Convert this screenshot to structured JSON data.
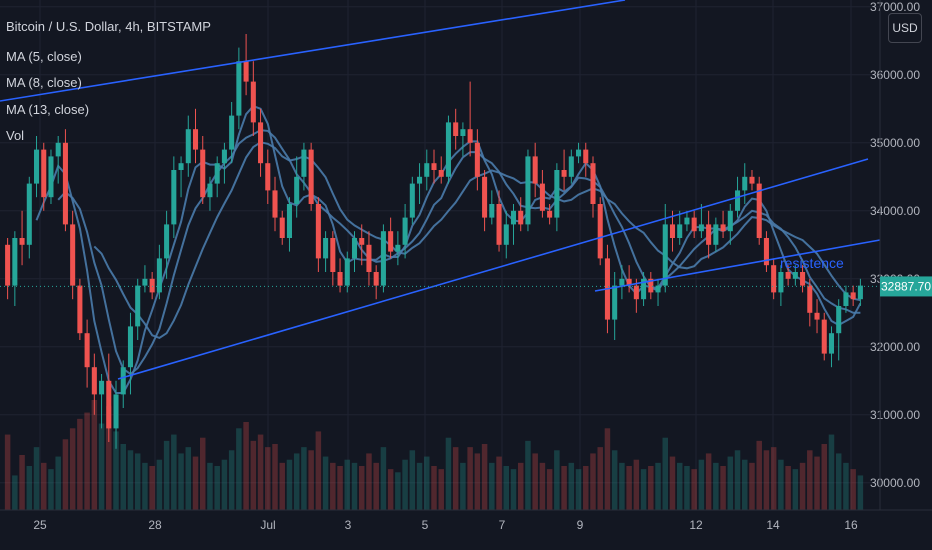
{
  "legend": {
    "title": "Bitcoin / U.S. Dollar, 4h, BITSTAMP",
    "indicators": [
      "MA (5, close)",
      "MA (8, close)",
      "MA (13, close)",
      "Vol"
    ]
  },
  "currency_button": "USD",
  "last_price_label": "32887.70",
  "annotation": "resistence",
  "colors": {
    "background": "#131722",
    "up": "#26a69a",
    "down": "#ef5350",
    "ma": "#4a7bab",
    "trendline": "#2962ff",
    "grid": "#1f2331",
    "axis_text": "#b2b5be",
    "price_tag": "#26a69a"
  },
  "chart_data": {
    "type": "candlestick",
    "symbol": "Bitcoin / U.S. Dollar",
    "interval": "4h",
    "exchange": "BITSTAMP",
    "x_ticks": [
      "25",
      "28",
      "Jul",
      "3",
      "5",
      "7",
      "9",
      "12",
      "14",
      "16"
    ],
    "y_ticks": [
      30000,
      31000,
      32000,
      33000,
      34000,
      35000,
      36000,
      37000
    ],
    "ylim": [
      29600,
      37100
    ],
    "last_price": 32887.7,
    "grid": true,
    "legend_position": "top-left",
    "series": [
      {
        "name": "MA (5, close)",
        "period": 5
      },
      {
        "name": "MA (8, close)",
        "period": 8
      },
      {
        "name": "MA (13, close)",
        "period": 13
      },
      {
        "name": "Vol"
      }
    ],
    "candles": [
      [
        33500,
        33600,
        32700,
        32900
      ],
      [
        32900,
        33700,
        32600,
        33600
      ],
      [
        33600,
        34000,
        33200,
        33500
      ],
      [
        33500,
        34500,
        33300,
        34400
      ],
      [
        34400,
        35100,
        34200,
        34900
      ],
      [
        34900,
        35000,
        34000,
        34200
      ],
      [
        34200,
        34900,
        34100,
        34800
      ],
      [
        34800,
        35100,
        34400,
        35000
      ],
      [
        35000,
        35200,
        33700,
        33800
      ],
      [
        33800,
        34000,
        32700,
        32900
      ],
      [
        32900,
        33000,
        32100,
        32200
      ],
      [
        32200,
        32400,
        31400,
        31700
      ],
      [
        31700,
        31900,
        31000,
        31300
      ],
      [
        31300,
        31600,
        30800,
        31500
      ],
      [
        31500,
        31900,
        30600,
        30800
      ],
      [
        30800,
        31500,
        30500,
        31300
      ],
      [
        31300,
        31800,
        31100,
        31700
      ],
      [
        31700,
        32500,
        31300,
        32300
      ],
      [
        32300,
        33000,
        32100,
        32900
      ],
      [
        32900,
        33200,
        32800,
        33000
      ],
      [
        33000,
        33100,
        32700,
        32800
      ],
      [
        32800,
        33500,
        32700,
        33300
      ],
      [
        33300,
        34000,
        33000,
        33800
      ],
      [
        33800,
        34800,
        33600,
        34600
      ],
      [
        34600,
        34800,
        34200,
        34700
      ],
      [
        34700,
        35400,
        34500,
        35200
      ],
      [
        35200,
        35500,
        34700,
        34900
      ],
      [
        34900,
        35100,
        34100,
        34200
      ],
      [
        34200,
        34500,
        34000,
        34400
      ],
      [
        34400,
        34800,
        34200,
        34700
      ],
      [
        34700,
        35000,
        34400,
        34900
      ],
      [
        34900,
        35600,
        34700,
        35400
      ],
      [
        35400,
        36400,
        35200,
        36200
      ],
      [
        36200,
        36600,
        35700,
        35900
      ],
      [
        35900,
        36200,
        35100,
        35300
      ],
      [
        35300,
        35500,
        34500,
        34700
      ],
      [
        34700,
        34900,
        34100,
        34300
      ],
      [
        34300,
        34500,
        33700,
        33900
      ],
      [
        33900,
        34000,
        33500,
        33600
      ],
      [
        33600,
        34200,
        33400,
        34100
      ],
      [
        34100,
        34800,
        33900,
        34500
      ],
      [
        34500,
        35000,
        34300,
        34900
      ],
      [
        34900,
        35000,
        34000,
        34100
      ],
      [
        34100,
        34200,
        33100,
        33300
      ],
      [
        33300,
        33700,
        33100,
        33600
      ],
      [
        33600,
        33700,
        32900,
        33100
      ],
      [
        33100,
        33300,
        32800,
        32900
      ],
      [
        32900,
        33400,
        32800,
        33300
      ],
      [
        33300,
        33700,
        33100,
        33600
      ],
      [
        33600,
        33800,
        33200,
        33500
      ],
      [
        33500,
        33700,
        32900,
        33100
      ],
      [
        33100,
        33200,
        32700,
        32900
      ],
      [
        32900,
        33800,
        32800,
        33700
      ],
      [
        33700,
        33900,
        33300,
        33400
      ],
      [
        33400,
        33700,
        33200,
        33500
      ],
      [
        33500,
        34100,
        33300,
        33900
      ],
      [
        33900,
        34500,
        33800,
        34400
      ],
      [
        34400,
        34700,
        34100,
        34500
      ],
      [
        34500,
        34900,
        34300,
        34700
      ],
      [
        34700,
        34900,
        34400,
        34600
      ],
      [
        34600,
        34800,
        34400,
        34500
      ],
      [
        34500,
        35400,
        34400,
        35300
      ],
      [
        35300,
        35500,
        34900,
        35100
      ],
      [
        35100,
        35300,
        34800,
        35200
      ],
      [
        35200,
        35900,
        34800,
        35000
      ],
      [
        35000,
        35200,
        34300,
        34500
      ],
      [
        34500,
        34600,
        33700,
        33900
      ],
      [
        33900,
        34300,
        33800,
        34100
      ],
      [
        34100,
        34300,
        33400,
        33500
      ],
      [
        33500,
        34000,
        33300,
        33800
      ],
      [
        33800,
        34100,
        33500,
        34000
      ],
      [
        34000,
        34200,
        33700,
        33800
      ],
      [
        33800,
        34900,
        33700,
        34800
      ],
      [
        34800,
        35000,
        34200,
        34400
      ],
      [
        34400,
        34600,
        33900,
        34000
      ],
      [
        34000,
        34100,
        33800,
        33900
      ],
      [
        33900,
        34700,
        33700,
        34600
      ],
      [
        34600,
        34900,
        34300,
        34500
      ],
      [
        34500,
        34900,
        34400,
        34800
      ],
      [
        34800,
        35000,
        34700,
        34900
      ],
      [
        34900,
        35000,
        34500,
        34700
      ],
      [
        34700,
        34800,
        33900,
        34100
      ],
      [
        34100,
        34200,
        33200,
        33300
      ],
      [
        33300,
        33500,
        32200,
        32400
      ],
      [
        32400,
        33100,
        32100,
        32900
      ],
      [
        32900,
        33200,
        32700,
        33000
      ],
      [
        33000,
        33200,
        32800,
        32900
      ],
      [
        32900,
        33000,
        32500,
        32700
      ],
      [
        32700,
        33100,
        32600,
        33000
      ],
      [
        33000,
        33100,
        32700,
        32800
      ],
      [
        32800,
        33000,
        32600,
        32900
      ],
      [
        32900,
        34100,
        32800,
        33800
      ],
      [
        33800,
        34000,
        33400,
        33600
      ],
      [
        33600,
        34000,
        33500,
        33800
      ],
      [
        33800,
        34000,
        33700,
        33900
      ],
      [
        33900,
        34000,
        33600,
        33700
      ],
      [
        33700,
        34100,
        33600,
        33800
      ],
      [
        33800,
        34000,
        33300,
        33500
      ],
      [
        33500,
        33900,
        33400,
        33800
      ],
      [
        33800,
        34000,
        33600,
        33700
      ],
      [
        33700,
        34100,
        33500,
        34000
      ],
      [
        34000,
        34500,
        33900,
        34300
      ],
      [
        34300,
        34700,
        34100,
        34500
      ],
      [
        34500,
        34600,
        34300,
        34400
      ],
      [
        34400,
        34500,
        33500,
        33600
      ],
      [
        33600,
        33700,
        33100,
        33200
      ],
      [
        33200,
        33300,
        32700,
        32800
      ],
      [
        32800,
        33200,
        32600,
        33100
      ],
      [
        33100,
        33200,
        32900,
        33000
      ],
      [
        33000,
        33200,
        32900,
        33100
      ],
      [
        33100,
        33200,
        32800,
        32900
      ],
      [
        32900,
        33000,
        32300,
        32500
      ],
      [
        32500,
        32700,
        32200,
        32400
      ],
      [
        32400,
        32500,
        31800,
        31900
      ],
      [
        31900,
        32300,
        31700,
        32200
      ],
      [
        32200,
        32700,
        31800,
        32600
      ],
      [
        32600,
        32900,
        32500,
        32800
      ],
      [
        32800,
        32900,
        32600,
        32700
      ],
      [
        32700,
        33000,
        32600,
        32900
      ]
    ],
    "volume": [
      48,
      22,
      35,
      28,
      40,
      30,
      26,
      34,
      45,
      52,
      58,
      62,
      70,
      55,
      66,
      50,
      42,
      38,
      36,
      30,
      28,
      32,
      44,
      48,
      36,
      40,
      34,
      46,
      30,
      28,
      32,
      38,
      52,
      56,
      44,
      48,
      40,
      42,
      30,
      32,
      36,
      40,
      38,
      50,
      34,
      30,
      28,
      32,
      30,
      28,
      36,
      30,
      40,
      26,
      24,
      32,
      38,
      30,
      34,
      28,
      26,
      46,
      40,
      30,
      40,
      36,
      42,
      30,
      34,
      28,
      26,
      30,
      44,
      36,
      30,
      26,
      38,
      28,
      30,
      26,
      28,
      36,
      40,
      52,
      38,
      30,
      28,
      32,
      26,
      28,
      30,
      46,
      34,
      30,
      28,
      26,
      32,
      36,
      30,
      28,
      34,
      38,
      32,
      30,
      44,
      38,
      40,
      32,
      28,
      26,
      30,
      38,
      34,
      42,
      48,
      36,
      30,
      26,
      22
    ]
  }
}
